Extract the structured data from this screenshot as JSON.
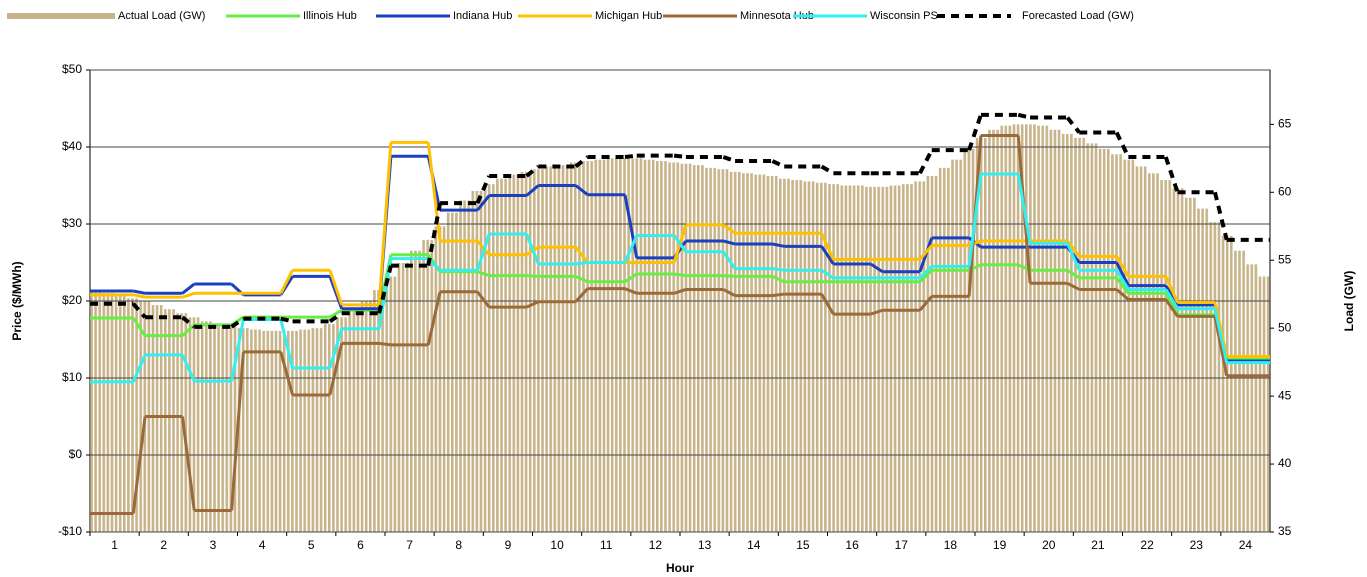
{
  "chart_data": {
    "type": "line",
    "x_label": "Hour",
    "y_label": "Price ($/MWh)",
    "y2_label": "Load (GW)",
    "categories": [
      "1",
      "2",
      "3",
      "4",
      "5",
      "6",
      "7",
      "8",
      "9",
      "10",
      "11",
      "12",
      "13",
      "14",
      "15",
      "16",
      "17",
      "18",
      "19",
      "20",
      "21",
      "22",
      "23",
      "24"
    ],
    "ylim": [
      -10,
      50
    ],
    "yticks": [
      {
        "value": -10,
        "label": "-$10"
      },
      {
        "value": 0,
        "label": "$0"
      },
      {
        "value": 10,
        "label": "$10"
      },
      {
        "value": 20,
        "label": "$20"
      },
      {
        "value": 30,
        "label": "$30"
      },
      {
        "value": 40,
        "label": "$40"
      },
      {
        "value": 50,
        "label": "$50"
      }
    ],
    "y2lim": [
      35,
      69
    ],
    "y2ticks": [
      35,
      40,
      45,
      50,
      55,
      60,
      65
    ],
    "grid": true,
    "legend": "top",
    "load": {
      "name": "Actual Load (GW)",
      "color": "#c8b48a",
      "axis": "y2",
      "values": [
        52.8,
        52.6,
        52.4,
        52.2,
        52.0,
        51.7,
        51.4,
        51.1,
        50.8,
        50.5,
        50.3,
        50.1,
        50.0,
        49.9,
        49.8,
        49.8,
        49.8,
        49.9,
        50.0,
        50.3,
        50.8,
        51.3,
        52.0,
        52.8,
        53.8,
        54.8,
        55.7,
        56.5,
        57.5,
        58.5,
        59.4,
        60.1,
        60.6,
        61.0,
        61.3,
        61.5,
        61.7,
        61.9,
        62.0,
        62.2,
        62.3,
        62.4,
        62.5,
        62.5,
        62.5,
        62.4,
        62.3,
        62.2,
        62.1,
        62.0,
        61.8,
        61.7,
        61.5,
        61.4,
        61.3,
        61.2,
        61.0,
        60.9,
        60.8,
        60.7,
        60.6,
        60.5,
        60.5,
        60.4,
        60.4,
        60.5,
        60.6,
        60.8,
        61.2,
        61.8,
        62.4,
        63.2,
        64.0,
        64.6,
        64.9,
        65.0,
        65.0,
        64.9,
        64.6,
        64.3,
        64.0,
        63.6,
        63.2,
        62.8,
        62.4,
        61.9,
        61.4,
        60.9,
        60.3,
        59.6,
        58.8,
        57.8,
        56.8,
        55.7,
        54.7,
        53.8
      ]
    },
    "series": [
      {
        "name": "Illinois Hub",
        "color": "#66ee44",
        "values": [
          17.8,
          15.5,
          16.9,
          17.9,
          17.9,
          18.8,
          26.0,
          23.8,
          23.3,
          23.2,
          22.5,
          23.5,
          23.3,
          23.2,
          22.5,
          22.5,
          22.5,
          24.0,
          24.7,
          24.0,
          23.0,
          21.0,
          18.2,
          12.5
        ]
      },
      {
        "name": "Indiana Hub",
        "color": "#1a3fbf",
        "values": [
          21.3,
          21.0,
          22.2,
          20.8,
          23.2,
          19.0,
          38.8,
          31.8,
          33.7,
          35.0,
          33.8,
          25.6,
          27.8,
          27.4,
          27.1,
          24.8,
          23.8,
          28.2,
          27.0,
          27.0,
          25.0,
          22.0,
          19.5,
          12.2
        ]
      },
      {
        "name": "Michigan Hub",
        "color": "#ffc000",
        "values": [
          20.8,
          20.5,
          21.0,
          21.0,
          24.0,
          19.5,
          40.6,
          27.8,
          26.0,
          27.0,
          25.0,
          25.0,
          29.9,
          28.8,
          28.8,
          25.4,
          25.4,
          27.2,
          27.8,
          27.8,
          25.8,
          23.2,
          19.8,
          12.8
        ]
      },
      {
        "name": "Minnesota Hub",
        "color": "#9a6a3a",
        "values": [
          -7.6,
          5.0,
          -7.2,
          13.4,
          7.8,
          14.5,
          14.3,
          21.2,
          19.2,
          19.9,
          21.6,
          21.0,
          21.5,
          20.7,
          20.9,
          18.3,
          18.8,
          20.6,
          41.5,
          22.3,
          21.5,
          20.2,
          18.0,
          10.3
        ]
      },
      {
        "name": "Wisconsin PS",
        "color": "#33eeee",
        "values": [
          9.5,
          13.0,
          9.6,
          17.6,
          11.3,
          16.4,
          25.5,
          24.0,
          28.7,
          24.8,
          25.0,
          28.5,
          26.4,
          24.2,
          24.0,
          23.0,
          23.0,
          24.5,
          36.5,
          27.5,
          24.0,
          21.5,
          19.0,
          12.0
        ]
      },
      {
        "name": "Forecasted Load (GW)",
        "color": "#000000",
        "axis": "y2",
        "dashed": true,
        "values": [
          51.8,
          50.8,
          50.1,
          50.7,
          50.5,
          51.1,
          54.6,
          59.2,
          61.2,
          61.9,
          62.6,
          62.7,
          62.6,
          62.3,
          61.9,
          61.4,
          61.4,
          63.1,
          65.7,
          65.5,
          64.4,
          62.6,
          60.0,
          56.5
        ]
      }
    ]
  }
}
